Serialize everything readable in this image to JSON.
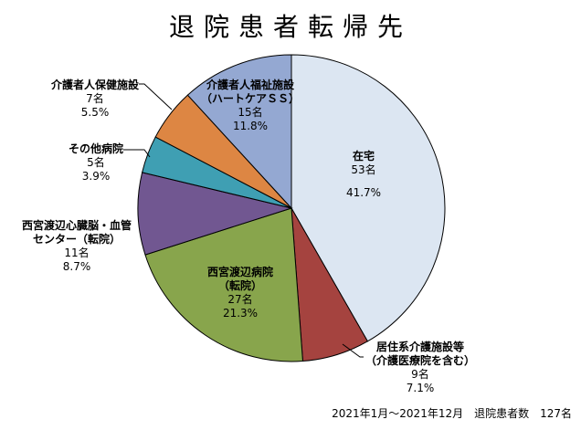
{
  "chart_data": {
    "type": "pie",
    "title": "退院患者転帰先",
    "total_label": "2021年1月～2021年12月　退院患者数　127名",
    "slices": [
      {
        "key": "zaitaku",
        "label_lines": [
          "在宅"
        ],
        "count": "53名",
        "percent": "41.7%",
        "value": 53,
        "color": "#dce6f2"
      },
      {
        "key": "kyojyu",
        "label_lines": [
          "居住系介護施設等",
          "（介護医療院を含む）"
        ],
        "count": "9名",
        "percent": "7.1%",
        "value": 9,
        "color": "#a5433f"
      },
      {
        "key": "nishimiya",
        "label_lines": [
          "西宮渡辺病院",
          "（転院）"
        ],
        "count": "27名",
        "percent": "21.3%",
        "value": 27,
        "color": "#88a54c"
      },
      {
        "key": "shinzo",
        "label_lines": [
          "西宮渡辺心臓脳・血管",
          "センター（転院）"
        ],
        "count": "11名",
        "percent": "8.7%",
        "value": 11,
        "color": "#715791"
      },
      {
        "key": "sonota",
        "label_lines": [
          "その他病院"
        ],
        "count": "5名",
        "percent": "3.9%",
        "value": 5,
        "color": "#3f9fb3"
      },
      {
        "key": "rouken",
        "label_lines": [
          "介護者人保健施設"
        ],
        "count": "7名",
        "percent": "5.5%",
        "value": 7,
        "color": "#dd8643"
      },
      {
        "key": "tokuyou",
        "label_lines": [
          "介護者人福祉施設",
          "（ハートケアＳＳ）"
        ],
        "count": "15名",
        "percent": "11.8%",
        "value": 15,
        "color": "#94a8d2"
      }
    ]
  }
}
